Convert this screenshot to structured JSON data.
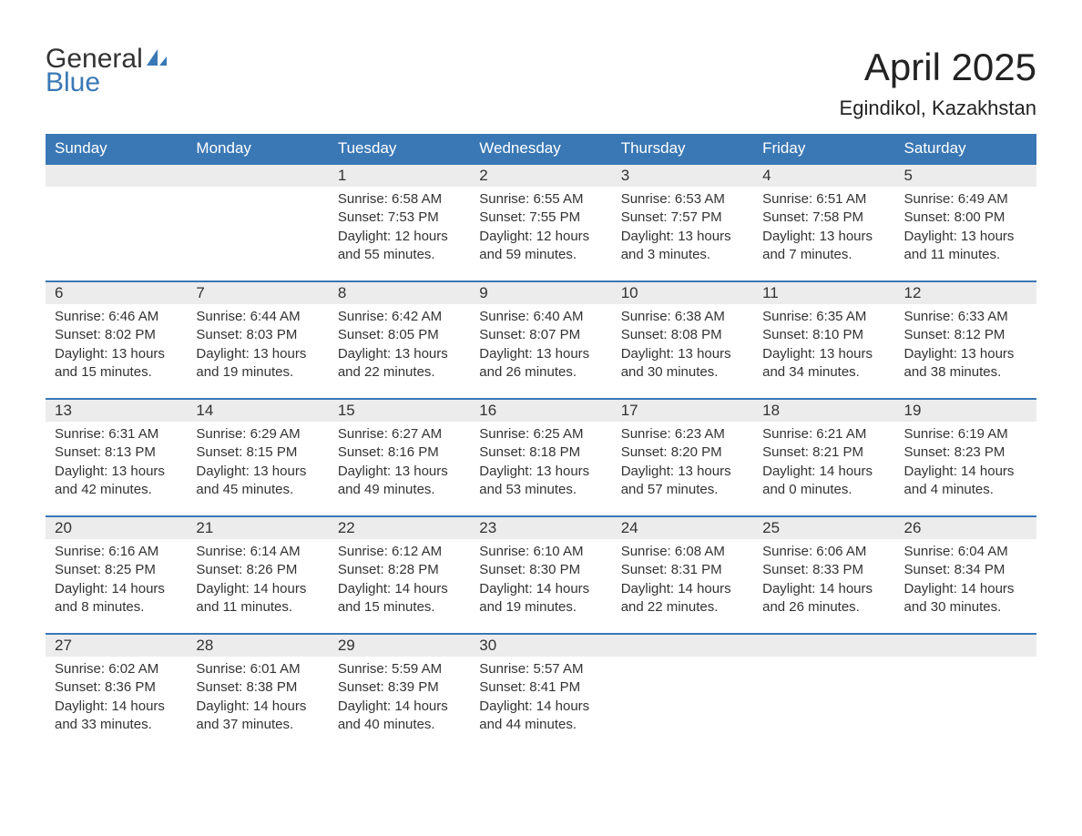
{
  "logo": {
    "top": "General",
    "bottom": "Blue"
  },
  "title": "April 2025",
  "subtitle": "Egindikol, Kazakhstan",
  "colors": {
    "header_bg": "#3a78b5",
    "header_text": "#ffffff",
    "daynum_bg": "#ececec",
    "row_border": "#3a78b5",
    "text": "#333333",
    "logo_blue": "#3a78b5"
  },
  "weekdays": [
    "Sunday",
    "Monday",
    "Tuesday",
    "Wednesday",
    "Thursday",
    "Friday",
    "Saturday"
  ],
  "weeks": [
    [
      null,
      null,
      {
        "n": "1",
        "sunrise": "6:58 AM",
        "sunset": "7:53 PM",
        "dl1": "12 hours",
        "dl2": "and 55 minutes."
      },
      {
        "n": "2",
        "sunrise": "6:55 AM",
        "sunset": "7:55 PM",
        "dl1": "12 hours",
        "dl2": "and 59 minutes."
      },
      {
        "n": "3",
        "sunrise": "6:53 AM",
        "sunset": "7:57 PM",
        "dl1": "13 hours",
        "dl2": "and 3 minutes."
      },
      {
        "n": "4",
        "sunrise": "6:51 AM",
        "sunset": "7:58 PM",
        "dl1": "13 hours",
        "dl2": "and 7 minutes."
      },
      {
        "n": "5",
        "sunrise": "6:49 AM",
        "sunset": "8:00 PM",
        "dl1": "13 hours",
        "dl2": "and 11 minutes."
      }
    ],
    [
      {
        "n": "6",
        "sunrise": "6:46 AM",
        "sunset": "8:02 PM",
        "dl1": "13 hours",
        "dl2": "and 15 minutes."
      },
      {
        "n": "7",
        "sunrise": "6:44 AM",
        "sunset": "8:03 PM",
        "dl1": "13 hours",
        "dl2": "and 19 minutes."
      },
      {
        "n": "8",
        "sunrise": "6:42 AM",
        "sunset": "8:05 PM",
        "dl1": "13 hours",
        "dl2": "and 22 minutes."
      },
      {
        "n": "9",
        "sunrise": "6:40 AM",
        "sunset": "8:07 PM",
        "dl1": "13 hours",
        "dl2": "and 26 minutes."
      },
      {
        "n": "10",
        "sunrise": "6:38 AM",
        "sunset": "8:08 PM",
        "dl1": "13 hours",
        "dl2": "and 30 minutes."
      },
      {
        "n": "11",
        "sunrise": "6:35 AM",
        "sunset": "8:10 PM",
        "dl1": "13 hours",
        "dl2": "and 34 minutes."
      },
      {
        "n": "12",
        "sunrise": "6:33 AM",
        "sunset": "8:12 PM",
        "dl1": "13 hours",
        "dl2": "and 38 minutes."
      }
    ],
    [
      {
        "n": "13",
        "sunrise": "6:31 AM",
        "sunset": "8:13 PM",
        "dl1": "13 hours",
        "dl2": "and 42 minutes."
      },
      {
        "n": "14",
        "sunrise": "6:29 AM",
        "sunset": "8:15 PM",
        "dl1": "13 hours",
        "dl2": "and 45 minutes."
      },
      {
        "n": "15",
        "sunrise": "6:27 AM",
        "sunset": "8:16 PM",
        "dl1": "13 hours",
        "dl2": "and 49 minutes."
      },
      {
        "n": "16",
        "sunrise": "6:25 AM",
        "sunset": "8:18 PM",
        "dl1": "13 hours",
        "dl2": "and 53 minutes."
      },
      {
        "n": "17",
        "sunrise": "6:23 AM",
        "sunset": "8:20 PM",
        "dl1": "13 hours",
        "dl2": "and 57 minutes."
      },
      {
        "n": "18",
        "sunrise": "6:21 AM",
        "sunset": "8:21 PM",
        "dl1": "14 hours",
        "dl2": "and 0 minutes."
      },
      {
        "n": "19",
        "sunrise": "6:19 AM",
        "sunset": "8:23 PM",
        "dl1": "14 hours",
        "dl2": "and 4 minutes."
      }
    ],
    [
      {
        "n": "20",
        "sunrise": "6:16 AM",
        "sunset": "8:25 PM",
        "dl1": "14 hours",
        "dl2": "and 8 minutes."
      },
      {
        "n": "21",
        "sunrise": "6:14 AM",
        "sunset": "8:26 PM",
        "dl1": "14 hours",
        "dl2": "and 11 minutes."
      },
      {
        "n": "22",
        "sunrise": "6:12 AM",
        "sunset": "8:28 PM",
        "dl1": "14 hours",
        "dl2": "and 15 minutes."
      },
      {
        "n": "23",
        "sunrise": "6:10 AM",
        "sunset": "8:30 PM",
        "dl1": "14 hours",
        "dl2": "and 19 minutes."
      },
      {
        "n": "24",
        "sunrise": "6:08 AM",
        "sunset": "8:31 PM",
        "dl1": "14 hours",
        "dl2": "and 22 minutes."
      },
      {
        "n": "25",
        "sunrise": "6:06 AM",
        "sunset": "8:33 PM",
        "dl1": "14 hours",
        "dl2": "and 26 minutes."
      },
      {
        "n": "26",
        "sunrise": "6:04 AM",
        "sunset": "8:34 PM",
        "dl1": "14 hours",
        "dl2": "and 30 minutes."
      }
    ],
    [
      {
        "n": "27",
        "sunrise": "6:02 AM",
        "sunset": "8:36 PM",
        "dl1": "14 hours",
        "dl2": "and 33 minutes."
      },
      {
        "n": "28",
        "sunrise": "6:01 AM",
        "sunset": "8:38 PM",
        "dl1": "14 hours",
        "dl2": "and 37 minutes."
      },
      {
        "n": "29",
        "sunrise": "5:59 AM",
        "sunset": "8:39 PM",
        "dl1": "14 hours",
        "dl2": "and 40 minutes."
      },
      {
        "n": "30",
        "sunrise": "5:57 AM",
        "sunset": "8:41 PM",
        "dl1": "14 hours",
        "dl2": "and 44 minutes."
      },
      null,
      null,
      null
    ]
  ],
  "labels": {
    "sunrise": "Sunrise:",
    "sunset": "Sunset:",
    "daylight": "Daylight:"
  }
}
